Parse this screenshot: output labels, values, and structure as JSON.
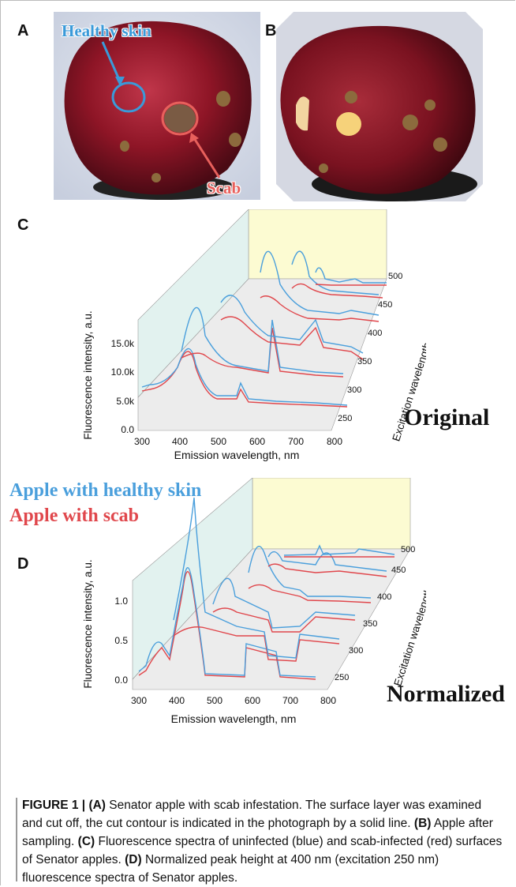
{
  "figure": {
    "panel_labels": [
      "A",
      "B",
      "C",
      "D"
    ],
    "photo_a": {
      "label_healthy": "Healthy skin",
      "label_scab": "Scab",
      "healthy_color": "#3a9ad9",
      "scab_color": "#e8605c"
    },
    "legend": {
      "healthy": "Apple with healthy skin",
      "scab": "Apple with scab",
      "healthy_color": "#4a9fdc",
      "scab_color": "#e0474c"
    },
    "panel_c_title": "Original",
    "panel_d_title": "Normalized",
    "caption": {
      "fig_label": "FIGURE 1 | ",
      "a_tag": "(A)",
      "a_text": " Senator apple with scab infestation. The surface layer was examined and cut off, the cut contour is indicated in the photograph by a solid line. ",
      "b_tag": "(B)",
      "b_text": " Apple after sampling. ",
      "c_tag": "(C)",
      "c_text": " Fluorescence spectra of uninfected (blue) and scab-infected (red) surfaces of Senator apples. ",
      "d_tag": "(D)",
      "d_text": " Normalized peak height at 400 nm (excitation 250 nm) fluorescence spectra of Senator apples."
    }
  },
  "chart_data": [
    {
      "type": "line",
      "panel": "C",
      "title": "Original",
      "xlabel": "Emission wavelength, nm",
      "ylabel": "Fluorescence intensity, a.u.",
      "zlabel": "Excitation wavelength, nm",
      "x_ticks": [
        "300",
        "400",
        "500",
        "600",
        "700",
        "800"
      ],
      "y_ticks": [
        "0.0",
        "5.0k",
        "10.0k",
        "15.0k"
      ],
      "z_ticks": [
        "250",
        "300",
        "350",
        "400",
        "450",
        "500"
      ],
      "ylim": [
        0,
        16000
      ],
      "series": [
        {
          "excitation": 250,
          "healthy_peak": 11000,
          "scab_peak": 9500
        },
        {
          "excitation": 300,
          "healthy_peak": 14500,
          "scab_peak": 6000
        },
        {
          "excitation": 350,
          "healthy_peak": 12000,
          "scab_peak": 4500
        },
        {
          "excitation": 400,
          "healthy_peak": 9000,
          "scab_peak": 3500
        },
        {
          "excitation": 450,
          "healthy_peak": 6000,
          "scab_peak": 1500
        },
        {
          "excitation": 500,
          "healthy_peak": 1500,
          "scab_peak": 500
        }
      ]
    },
    {
      "type": "line",
      "panel": "D",
      "title": "Normalized",
      "xlabel": "Emission wavelength, nm",
      "ylabel": "Fluorescence intensity, a.u.",
      "zlabel": "Excitation wavelength, nm",
      "x_ticks": [
        "300",
        "400",
        "500",
        "600",
        "700",
        "800"
      ],
      "y_ticks": [
        "0.0",
        "0.5",
        "1.0"
      ],
      "z_ticks": [
        "250",
        "300",
        "350",
        "400",
        "450",
        "500"
      ],
      "ylim": [
        0,
        1.1
      ],
      "series": [
        {
          "excitation": 250,
          "healthy_peak": 1.0,
          "scab_peak": 1.0
        },
        {
          "excitation": 300,
          "healthy_peak": 1.2,
          "scab_peak": 0.5
        },
        {
          "excitation": 350,
          "healthy_peak": 0.8,
          "scab_peak": 0.3
        },
        {
          "excitation": 400,
          "healthy_peak": 0.6,
          "scab_peak": 0.3
        },
        {
          "excitation": 450,
          "healthy_peak": 0.35,
          "scab_peak": 0.1
        },
        {
          "excitation": 500,
          "healthy_peak": 0.1,
          "scab_peak": 0.05
        }
      ]
    }
  ]
}
